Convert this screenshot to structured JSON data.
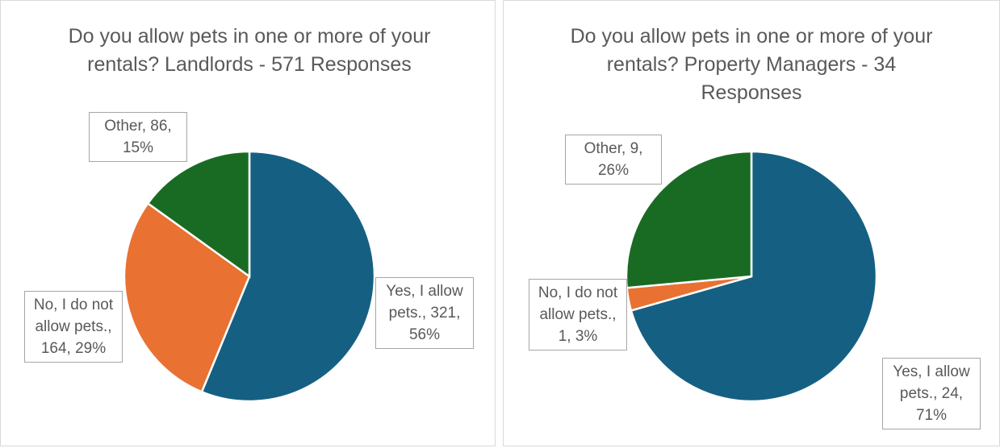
{
  "chart_data": [
    {
      "type": "pie",
      "title": "Do you allow pets in one or more of your rentals? Landlords - 571 Responses",
      "values": [
        321,
        164,
        86
      ],
      "value_labels": [
        "Yes, I allow pets., 321, 56%",
        "No, I do not allow pets., 164, 29%",
        "Other, 86, 15%"
      ],
      "colors": [
        "#156082",
        "#e97132",
        "#196b24"
      ]
    },
    {
      "type": "pie",
      "title": "Do you allow pets in one or more of your rentals? Property Managers - 34 Responses",
      "values": [
        24,
        1,
        9
      ],
      "value_labels": [
        "Yes, I allow pets., 24, 71%",
        "No, I do not allow pets., 1, 3%",
        "Other, 9, 26%"
      ],
      "colors": [
        "#156082",
        "#e97132",
        "#196b24"
      ]
    }
  ]
}
